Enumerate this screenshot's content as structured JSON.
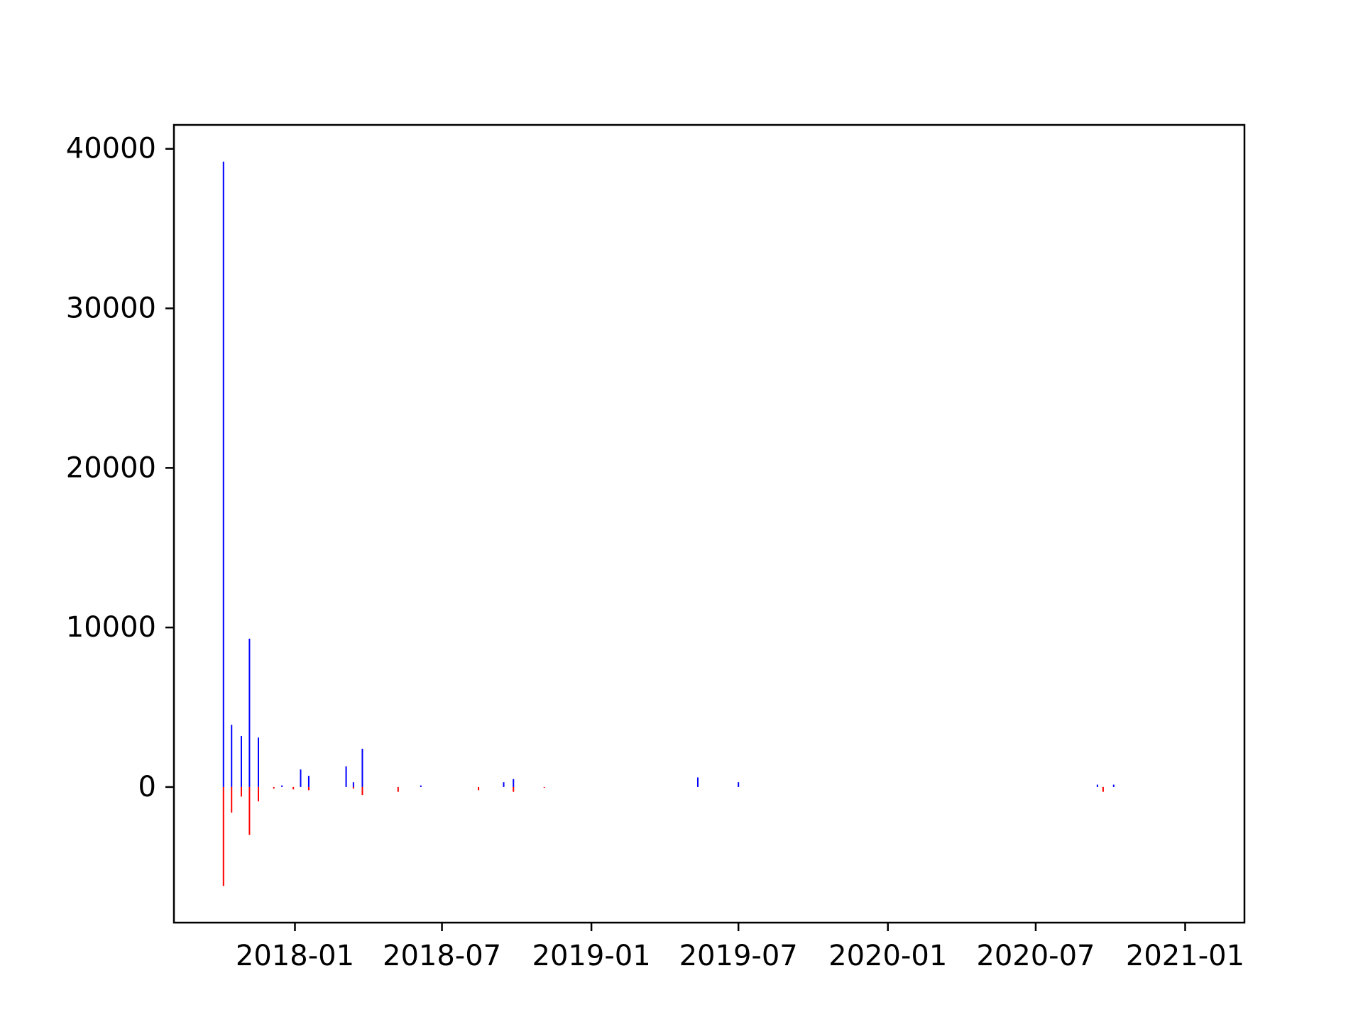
{
  "chart_data": {
    "type": "bar",
    "title": "",
    "xlabel": "",
    "ylabel": "",
    "x_axis": {
      "kind": "date",
      "range": [
        "2017-08-05",
        "2021-03-15"
      ],
      "ticks": [
        "2018-01-01",
        "2018-07-01",
        "2019-01-01",
        "2019-07-01",
        "2020-01-01",
        "2020-07-01",
        "2021-01-01"
      ],
      "tick_labels": [
        "2018-01",
        "2018-07",
        "2019-01",
        "2019-07",
        "2020-01",
        "2020-07",
        "2021-01"
      ]
    },
    "y_axis": {
      "range": [
        -8500,
        41500
      ],
      "ticks": [
        0,
        10000,
        20000,
        30000,
        40000
      ],
      "tick_labels": [
        "0",
        "10000",
        "20000",
        "30000",
        "40000"
      ]
    },
    "grid": false,
    "legend": "none",
    "series": [
      {
        "color": "#0000ff",
        "points": [
          {
            "date": "2017-10-05",
            "value": 39200
          },
          {
            "date": "2017-10-15",
            "value": 3900
          },
          {
            "date": "2017-10-27",
            "value": 3200
          },
          {
            "date": "2017-11-06",
            "value": 9300
          },
          {
            "date": "2017-11-17",
            "value": 3100
          },
          {
            "date": "2017-12-16",
            "value": 100
          },
          {
            "date": "2018-01-08",
            "value": 1100
          },
          {
            "date": "2018-01-18",
            "value": 700
          },
          {
            "date": "2018-03-05",
            "value": 1300
          },
          {
            "date": "2018-03-14",
            "value": 300
          },
          {
            "date": "2018-03-25",
            "value": 2400
          },
          {
            "date": "2018-06-05",
            "value": 100
          },
          {
            "date": "2018-09-15",
            "value": 300
          },
          {
            "date": "2018-09-27",
            "value": 500
          },
          {
            "date": "2019-05-12",
            "value": 600
          },
          {
            "date": "2019-07-01",
            "value": 300
          },
          {
            "date": "2020-09-15",
            "value": 150
          },
          {
            "date": "2020-10-05",
            "value": 150
          }
        ]
      },
      {
        "color": "#ff0000",
        "points": [
          {
            "date": "2017-10-05",
            "value": -6200
          },
          {
            "date": "2017-10-15",
            "value": -1600
          },
          {
            "date": "2017-10-27",
            "value": -600
          },
          {
            "date": "2017-11-06",
            "value": -3000
          },
          {
            "date": "2017-11-17",
            "value": -900
          },
          {
            "date": "2017-12-06",
            "value": -100
          },
          {
            "date": "2017-12-30",
            "value": -150
          },
          {
            "date": "2018-01-18",
            "value": -200
          },
          {
            "date": "2018-03-14",
            "value": -100
          },
          {
            "date": "2018-03-25",
            "value": -500
          },
          {
            "date": "2018-05-08",
            "value": -300
          },
          {
            "date": "2018-08-15",
            "value": -200
          },
          {
            "date": "2018-09-27",
            "value": -300
          },
          {
            "date": "2018-11-04",
            "value": -50
          },
          {
            "date": "2020-09-22",
            "value": -300
          }
        ]
      }
    ]
  }
}
